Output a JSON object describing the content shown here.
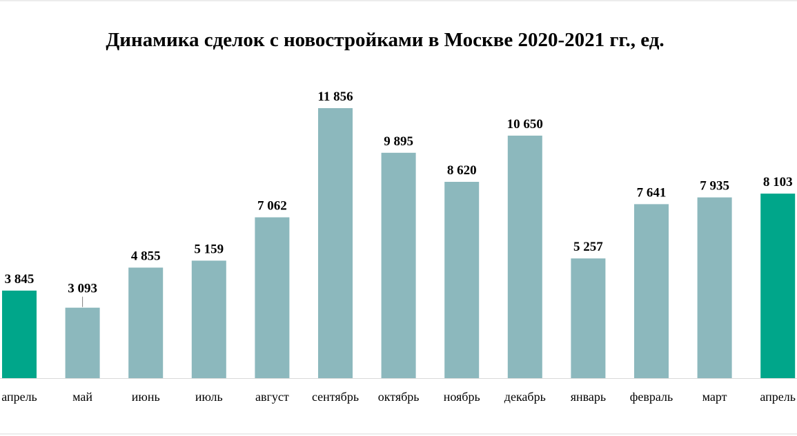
{
  "chart_data": {
    "type": "bar",
    "title": "Динамика сделок с новостройками в Москве 2020-2021 гг., ед.",
    "categories": [
      "апрель",
      "май",
      "июнь",
      "июль",
      "август",
      "сентябрь",
      "октябрь",
      "ноябрь",
      "декабрь",
      "январь",
      "февраль",
      "март",
      "апрель"
    ],
    "values": [
      3845,
      3093,
      4855,
      5159,
      7062,
      11856,
      9895,
      8620,
      10650,
      5257,
      7641,
      7935,
      8103
    ],
    "value_labels": [
      "3 845",
      "3 093",
      "4 855",
      "5 159",
      "7 062",
      "11 856",
      "9 895",
      "8 620",
      "10 650",
      "5 257",
      "7 641",
      "7 935",
      "8 103"
    ],
    "highlighted_indices": [
      0,
      12
    ],
    "ylim": [
      0,
      12000
    ],
    "grid": false,
    "legend": "none",
    "xlabel": "",
    "ylabel": ""
  },
  "colors": {
    "bar": "#8cb8bd",
    "highlight": "#00a68a",
    "axis": "#d9d9d9",
    "frame": "#d9d9d9",
    "text": "#000000"
  }
}
